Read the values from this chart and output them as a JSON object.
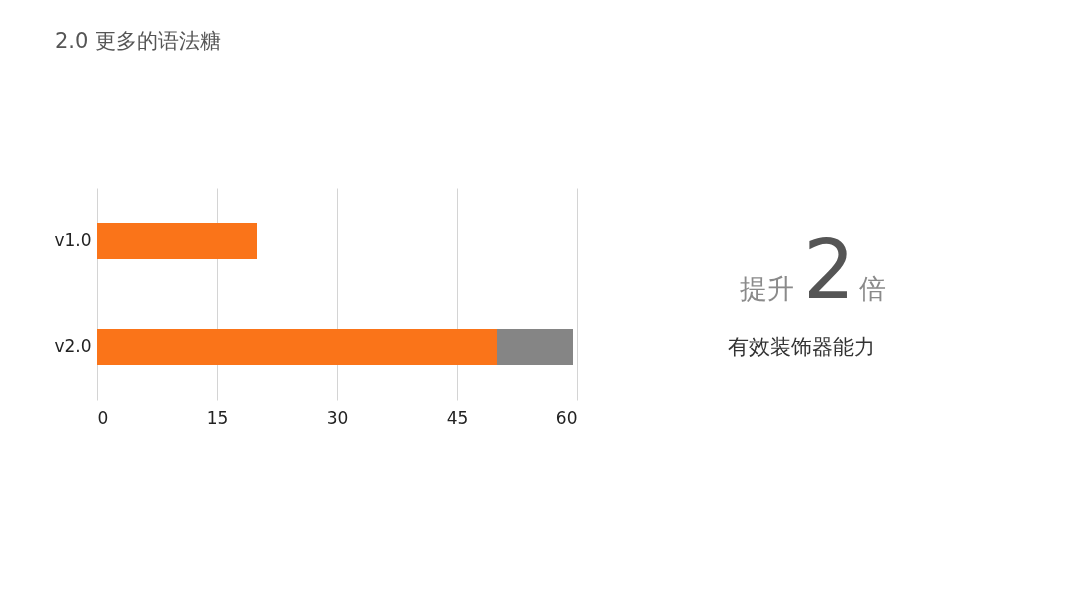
{
  "chart_data": {
    "type": "bar",
    "orientation": "horizontal",
    "stacked": true,
    "title": "2.0 更多的语法糖",
    "categories": [
      "v1.0",
      "v2.0"
    ],
    "series": [
      {
        "color": "#fa7419",
        "values": [
          20,
          50
        ]
      },
      {
        "color": "#858585",
        "values": [
          null,
          9.5
        ]
      }
    ],
    "xlim": [
      0,
      60
    ],
    "xticks": [
      0,
      15,
      30,
      45,
      60
    ],
    "grid": "x",
    "legend": false,
    "annotations": [
      "提升",
      "2",
      "倍",
      "有效装饰器能力"
    ]
  }
}
